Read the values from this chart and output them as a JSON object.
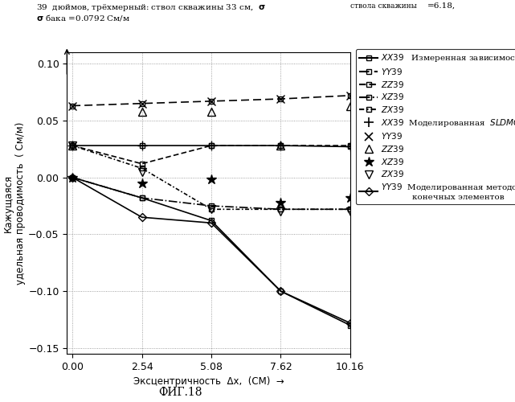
{
  "x_values": [
    0,
    2.54,
    5.08,
    7.62,
    10.16
  ],
  "series": {
    "XX39_meas": {
      "y": [
        0.028,
        0.028,
        0.028,
        0.028,
        0.027
      ],
      "linestyle": "solid",
      "dashes": [],
      "marker": "s",
      "markersize": 5,
      "linewidth": 1.2,
      "fillstyle": "none"
    },
    "YY39_meas": {
      "y": [
        0.063,
        0.065,
        0.067,
        0.069,
        0.072
      ],
      "linestyle": "dashed",
      "dashes": [
        6,
        3
      ],
      "marker": "s",
      "markersize": 5,
      "linewidth": 1.2,
      "fillstyle": "none"
    },
    "ZZ39_meas": {
      "y": [
        0.028,
        0.012,
        0.028,
        0.028,
        0.028
      ],
      "linestyle": "dashed",
      "dashes": [
        4,
        2
      ],
      "marker": "s",
      "markersize": 5,
      "linewidth": 1.2,
      "fillstyle": "none"
    },
    "XZ39_meas": {
      "y": [
        0.0,
        -0.018,
        -0.025,
        -0.028,
        -0.028
      ],
      "linestyle": "dashdot",
      "dashes": [],
      "marker": "s",
      "markersize": 5,
      "linewidth": 1.2,
      "fillstyle": "none"
    },
    "ZX39_meas": {
      "y": [
        0.028,
        0.008,
        -0.028,
        -0.028,
        -0.028
      ],
      "linestyle": "dashed",
      "dashes": [
        3,
        1.5,
        1,
        1.5
      ],
      "marker": "s",
      "markersize": 5,
      "linewidth": 1.2,
      "fillstyle": "none"
    },
    "XX39_sim": {
      "y": [
        0.028,
        0.028,
        0.028,
        0.028,
        0.027
      ],
      "marker": "+",
      "markersize": 8
    },
    "YY39_sim": {
      "y": [
        0.063,
        0.065,
        0.067,
        0.069,
        0.072
      ],
      "marker": "x",
      "markersize": 7
    },
    "ZZ39_sim": {
      "y": [
        0.028,
        0.058,
        0.058,
        0.028,
        0.063
      ],
      "marker": "^",
      "markersize": 7,
      "fillstyle": "none"
    },
    "XZ39_sim": {
      "y": [
        0.0,
        -0.005,
        -0.002,
        -0.022,
        -0.018
      ],
      "marker": "*",
      "markersize": 9
    },
    "ZX39_sim": {
      "y": [
        0.028,
        0.005,
        -0.028,
        -0.03,
        -0.03
      ],
      "marker": "v",
      "markersize": 7,
      "fillstyle": "none"
    },
    "YY39_fem": {
      "y": [
        0.0,
        -0.035,
        -0.04,
        -0.1,
        -0.128
      ],
      "linestyle": "solid",
      "dashes": [],
      "marker": "D",
      "markersize": 5,
      "linewidth": 1.2,
      "fillstyle": "none"
    },
    "XX39_line2": {
      "y": [
        0.0,
        -0.018,
        -0.038,
        -0.1,
        -0.13
      ],
      "linestyle": "solid",
      "dashes": [],
      "marker": "s",
      "markersize": 5,
      "linewidth": 1.2,
      "fillstyle": "none"
    }
  },
  "xlim": [
    0,
    10.16
  ],
  "ylim": [
    -0.155,
    0.11
  ],
  "xticks": [
    0,
    2.54,
    5.08,
    7.62,
    10.16
  ],
  "yticks": [
    -0.15,
    -0.1,
    -0.05,
    0.0,
    0.05,
    0.1
  ],
  "xlabel": "Эксцентричность  Δx,  (СМ)  →",
  "ylabel": "Кажущаяся\nудельная проводимость  ( См/м)",
  "fig_label": "ФИГ.18",
  "background_color": "#ffffff",
  "color": "#000000"
}
